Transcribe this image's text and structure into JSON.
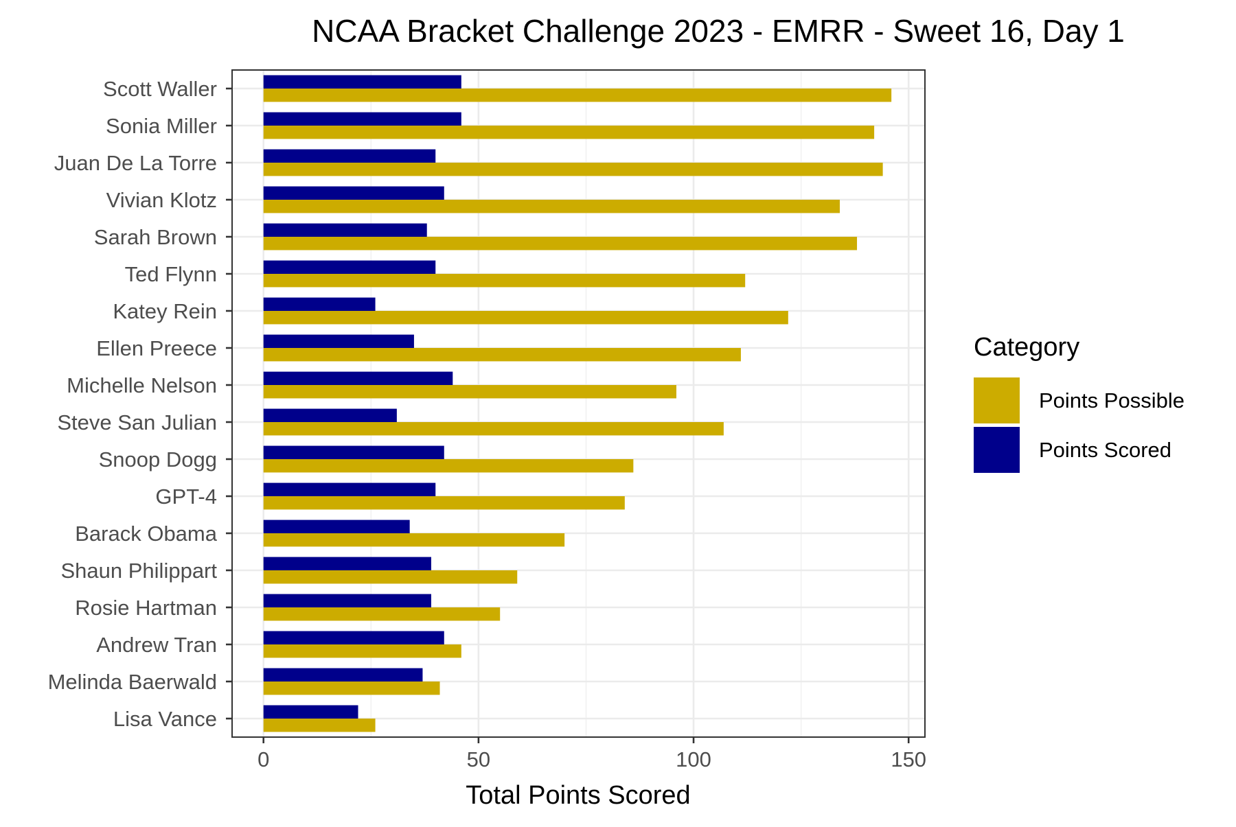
{
  "chart_data": {
    "type": "bar",
    "orientation": "horizontal",
    "title": "NCAA Bracket Challenge 2023 - EMRR - Sweet 16, Day 1",
    "xlabel": "Total Points Scored",
    "ylabel": "",
    "xlim": [
      -7.3,
      153.8
    ],
    "xticks": [
      0,
      50,
      100,
      150
    ],
    "grid": true,
    "legend": {
      "title": "Category",
      "position": "right"
    },
    "categories": [
      "Scott Waller",
      "Sonia Miller",
      "Juan De La Torre",
      "Vivian Klotz",
      "Sarah Brown",
      "Ted Flynn",
      "Katey Rein",
      "Ellen Preece",
      "Michelle Nelson",
      "Steve San Julian",
      "Snoop Dogg",
      "GPT-4",
      "Barack Obama",
      "Shaun Philippart",
      "Rosie Hartman",
      "Andrew Tran",
      "Melinda Baerwald",
      "Lisa Vance"
    ],
    "series": [
      {
        "name": "Points Possible",
        "color": "#CCAC00",
        "values": [
          146,
          142,
          144,
          134,
          138,
          112,
          122,
          111,
          96,
          107,
          86,
          84,
          70,
          59,
          55,
          46,
          41,
          26
        ]
      },
      {
        "name": "Points Scored",
        "color": "#00008B",
        "values": [
          46,
          46,
          40,
          42,
          38,
          40,
          26,
          35,
          44,
          31,
          42,
          40,
          34,
          39,
          39,
          42,
          37,
          22
        ]
      }
    ]
  }
}
